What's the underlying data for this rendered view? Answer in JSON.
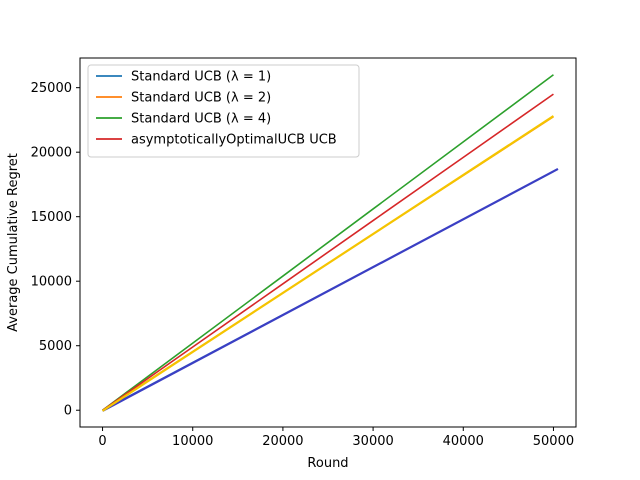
{
  "chart_data": {
    "type": "line",
    "title": "",
    "xlabel": "Round",
    "ylabel": "Average Cumulative Regret",
    "xlim": [
      -2500,
      52500
    ],
    "ylim": [
      -1300,
      27300
    ],
    "xticks": [
      0,
      10000,
      20000,
      30000,
      40000,
      50000
    ],
    "yticks": [
      0,
      5000,
      10000,
      15000,
      20000,
      25000
    ],
    "grid": false,
    "legend_position": "top-left",
    "series": [
      {
        "name": "Standard UCB (λ = 1)",
        "color": "#1f77b4",
        "x": [
          0,
          10000,
          20000,
          30000,
          40000,
          50000
        ],
        "y": [
          0,
          3700,
          7400,
          11100,
          14800,
          18500
        ]
      },
      {
        "name": "Standard UCB (λ = 2)",
        "color": "#ff7f0e",
        "x": [
          0,
          10000,
          20000,
          30000,
          40000,
          50000
        ],
        "y": [
          0,
          4550,
          9100,
          13650,
          18200,
          22750
        ]
      },
      {
        "name": "Standard UCB (λ = 4)",
        "color": "#2ca02c",
        "x": [
          0,
          10000,
          20000,
          30000,
          40000,
          50000
        ],
        "y": [
          0,
          5200,
          10400,
          15600,
          20800,
          26000
        ]
      },
      {
        "name": "asymptoticallyOptimalUCB UCB",
        "color": "#d62728",
        "x": [
          0,
          10000,
          20000,
          30000,
          40000,
          50000
        ],
        "y": [
          0,
          4900,
          9800,
          14700,
          19600,
          24500
        ]
      }
    ],
    "overlay_bands": [
      {
        "color": "#3b3fc4",
        "x": [
          0,
          50500
        ],
        "y": [
          -50,
          18700
        ]
      },
      {
        "color": "#f5c400",
        "x": [
          0,
          50000
        ],
        "y": [
          -50,
          22800
        ]
      }
    ]
  }
}
